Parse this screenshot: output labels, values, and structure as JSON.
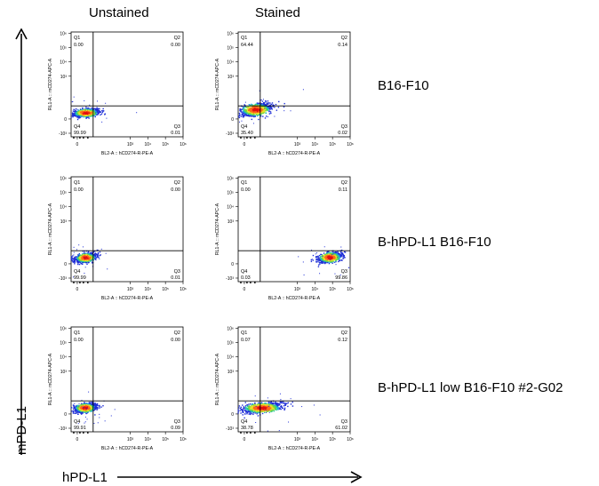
{
  "columns": {
    "left": "Unstained",
    "right": "Stained"
  },
  "rows": [
    "B16-F10",
    "B-hPD-L1 B16-F10",
    "B-hPD-L1 low B16-F10 #2-G02"
  ],
  "axes": {
    "y_title": "mPD-L1",
    "x_title": "hPD-L1"
  },
  "plot_axes": {
    "x_label": "BL2-A :: hCD274-R-PE-A",
    "y_label": "RL1-A :: mCD274-APC-A",
    "y_ticks": [
      "10⁶",
      "10⁵",
      "10⁴",
      "10³",
      "0",
      "-10³"
    ],
    "x_ticks": [
      "0",
      "10³",
      "10⁴",
      "10⁵",
      "10⁶"
    ]
  },
  "quadrant_labels": [
    "Q1",
    "Q2",
    "Q3",
    "Q4"
  ],
  "chart_data": {
    "type": "scatter",
    "plot_type": "flow-cytometry quadrant density plot",
    "panels": [
      {
        "row": "B16-F10",
        "column": "Unstained",
        "quadrants": {
          "Q1": "0.00",
          "Q2": "0.00",
          "Q3": "0.01",
          "Q4": "99.99"
        },
        "cluster": [
          [
            0.5,
            0.42,
            0.36,
            0.16
          ]
        ]
      },
      {
        "row": "B16-F10",
        "column": "Stained",
        "quadrants": {
          "Q1": "64.44",
          "Q2": "0.14",
          "Q3": "0.02",
          "Q4": "35.40"
        },
        "cluster": [
          [
            0.65,
            0.64,
            0.43,
            0.24
          ]
        ]
      },
      {
        "row": "B-hPD-L1 B16-F10",
        "column": "Unstained",
        "quadrants": {
          "Q1": "0.00",
          "Q2": "0.00",
          "Q3": "0.01",
          "Q4": "99.99"
        },
        "cluster": [
          [
            0.48,
            0.42,
            0.29,
            0.18
          ]
        ]
      },
      {
        "row": "B-hPD-L1 B16-F10",
        "column": "Stained",
        "quadrants": {
          "Q1": "0.00",
          "Q2": "0.11",
          "Q3": "99.86",
          "Q4": "0.03"
        },
        "cluster": [
          [
            4.85,
            0.44,
            0.33,
            0.2
          ]
        ]
      },
      {
        "row": "B-hPD-L1 low B16-F10 #2-G02",
        "column": "Unstained",
        "quadrants": {
          "Q1": "0.00",
          "Q2": "0.00",
          "Q3": "0.09",
          "Q4": "99.91"
        },
        "cluster": [
          [
            0.45,
            0.42,
            0.3,
            0.18
          ]
        ]
      },
      {
        "row": "B-hPD-L1 low B16-F10 #2-G02",
        "column": "Stained",
        "quadrants": {
          "Q1": "0.07",
          "Q2": "0.12",
          "Q3": "61.02",
          "Q4": "38.78"
        },
        "cluster": [
          [
            1.0,
            0.42,
            0.55,
            0.2
          ]
        ]
      }
    ],
    "gates": {
      "x": 0.9,
      "y": 0.92
    },
    "density_colors": [
      "#1f2fd6",
      "#1f9fe8",
      "#20c9a0",
      "#7fd53a",
      "#e8e22a",
      "#ff6a1a",
      "#e01010"
    ]
  }
}
